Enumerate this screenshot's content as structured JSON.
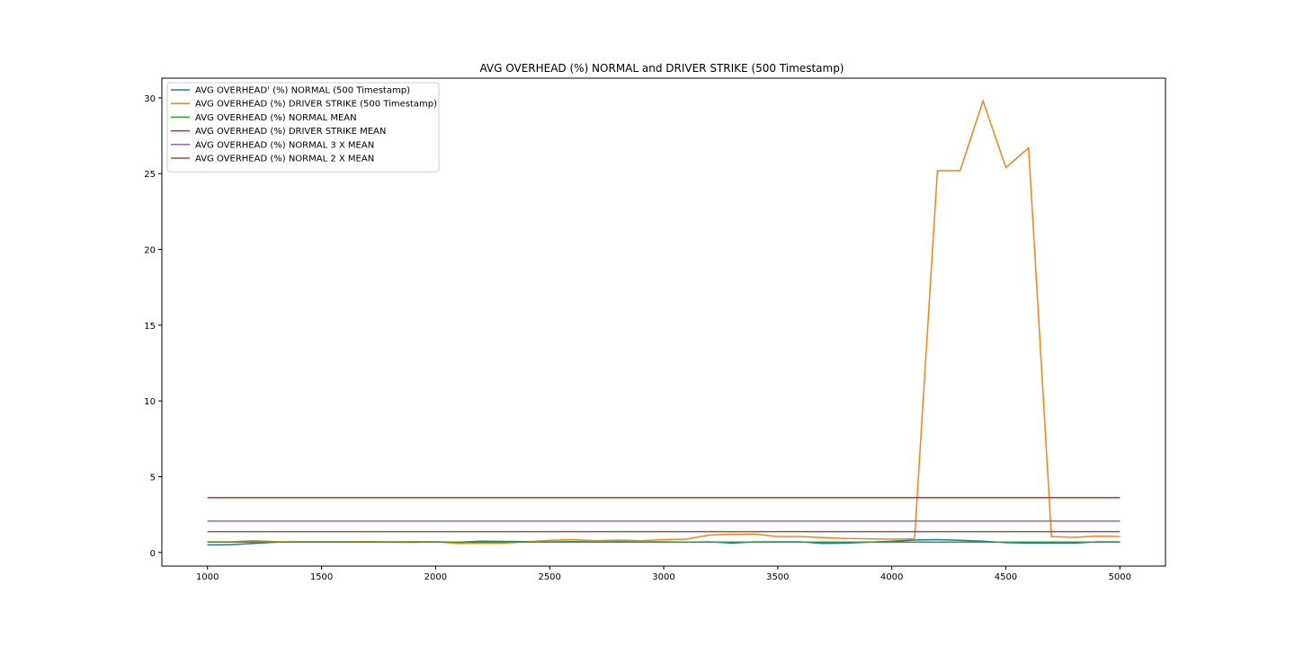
{
  "chart_data": {
    "type": "line",
    "title": "AVG OVERHEAD (%) NORMAL and DRIVER STRIKE (500 Timestamp)",
    "xlabel": "",
    "ylabel": "",
    "xlim": [
      800,
      5200
    ],
    "ylim": [
      -0.9,
      31.3
    ],
    "x_ticks": [
      1000,
      1500,
      2000,
      2500,
      3000,
      3500,
      4000,
      4500,
      5000
    ],
    "y_ticks": [
      0,
      5,
      10,
      15,
      20,
      25,
      30
    ],
    "grid": false,
    "legend_position": "upper-left",
    "x": [
      1000,
      1100,
      1200,
      1300,
      1400,
      1500,
      1600,
      1700,
      1800,
      1900,
      2000,
      2100,
      2200,
      2300,
      2400,
      2500,
      2600,
      2700,
      2800,
      2900,
      3000,
      3100,
      3200,
      3300,
      3400,
      3500,
      3600,
      3700,
      3800,
      3900,
      4000,
      4100,
      4200,
      4300,
      4400,
      4500,
      4600,
      4700,
      4800,
      4900,
      5000
    ],
    "series": [
      {
        "name": "AVG OVERHEAD' (%) NORMAL (500 Timestamp)",
        "color": "#1f77b4",
        "values": [
          0.5,
          0.52,
          0.6,
          0.68,
          0.7,
          0.7,
          0.7,
          0.7,
          0.68,
          0.67,
          0.7,
          0.68,
          0.75,
          0.73,
          0.72,
          0.7,
          0.72,
          0.7,
          0.72,
          0.7,
          0.7,
          0.68,
          0.7,
          0.62,
          0.7,
          0.7,
          0.7,
          0.6,
          0.62,
          0.68,
          0.75,
          0.82,
          0.85,
          0.8,
          0.75,
          0.65,
          0.62,
          0.62,
          0.62,
          0.7,
          0.7
        ]
      },
      {
        "name": "AVG OVERHEAD (%) DRIVER STRIKE (500 Timestamp)",
        "color": "#ff7f0e",
        "values": [
          0.7,
          0.7,
          0.78,
          0.72,
          0.7,
          0.7,
          0.7,
          0.72,
          0.7,
          0.72,
          0.7,
          0.6,
          0.62,
          0.62,
          0.7,
          0.8,
          0.85,
          0.78,
          0.82,
          0.78,
          0.85,
          0.88,
          1.15,
          1.2,
          1.22,
          1.05,
          1.05,
          0.98,
          0.92,
          0.9,
          0.88,
          0.9,
          25.2,
          25.2,
          29.8,
          25.4,
          26.7,
          1.05,
          1.0,
          1.08,
          1.05
        ]
      },
      {
        "name": "AVG OVERHEAD (%) NORMAL MEAN",
        "color": "#2ca02c",
        "values": [
          0.69,
          0.69,
          0.69,
          0.69,
          0.69,
          0.69,
          0.69,
          0.69,
          0.69,
          0.69,
          0.69,
          0.69,
          0.69,
          0.69,
          0.69,
          0.69,
          0.69,
          0.69,
          0.69,
          0.69,
          0.69,
          0.69,
          0.69,
          0.69,
          0.69,
          0.69,
          0.69,
          0.69,
          0.69,
          0.69,
          0.69,
          0.69,
          0.69,
          0.69,
          0.69,
          0.69,
          0.69,
          0.69,
          0.69,
          0.69,
          0.69
        ]
      },
      {
        "name": "AVG OVERHEAD (%) DRIVER STRIKE MEAN",
        "color": "#d62728",
        "values": [
          3.62,
          3.62,
          3.62,
          3.62,
          3.62,
          3.62,
          3.62,
          3.62,
          3.62,
          3.62,
          3.62,
          3.62,
          3.62,
          3.62,
          3.62,
          3.62,
          3.62,
          3.62,
          3.62,
          3.62,
          3.62,
          3.62,
          3.62,
          3.62,
          3.62,
          3.62,
          3.62,
          3.62,
          3.62,
          3.62,
          3.62,
          3.62,
          3.62,
          3.62,
          3.62,
          3.62,
          3.62,
          3.62,
          3.62,
          3.62,
          3.62
        ]
      },
      {
        "name": "AVG OVERHEAD (%) NORMAL 3 X MEAN",
        "color": "#9467bd",
        "values": [
          2.07,
          2.07,
          2.07,
          2.07,
          2.07,
          2.07,
          2.07,
          2.07,
          2.07,
          2.07,
          2.07,
          2.07,
          2.07,
          2.07,
          2.07,
          2.07,
          2.07,
          2.07,
          2.07,
          2.07,
          2.07,
          2.07,
          2.07,
          2.07,
          2.07,
          2.07,
          2.07,
          2.07,
          2.07,
          2.07,
          2.07,
          2.07,
          2.07,
          2.07,
          2.07,
          2.07,
          2.07,
          2.07,
          2.07,
          2.07,
          2.07
        ]
      },
      {
        "name": "AVG OVERHEAD (%) NORMAL 2 X MEAN",
        "color": "#8c564b",
        "values": [
          1.38,
          1.38,
          1.38,
          1.38,
          1.38,
          1.38,
          1.38,
          1.38,
          1.38,
          1.38,
          1.38,
          1.38,
          1.38,
          1.38,
          1.38,
          1.38,
          1.38,
          1.38,
          1.38,
          1.38,
          1.38,
          1.38,
          1.38,
          1.38,
          1.38,
          1.38,
          1.38,
          1.38,
          1.38,
          1.38,
          1.38,
          1.38,
          1.38,
          1.38,
          1.38,
          1.38,
          1.38,
          1.38,
          1.38,
          1.38,
          1.38
        ]
      }
    ]
  }
}
